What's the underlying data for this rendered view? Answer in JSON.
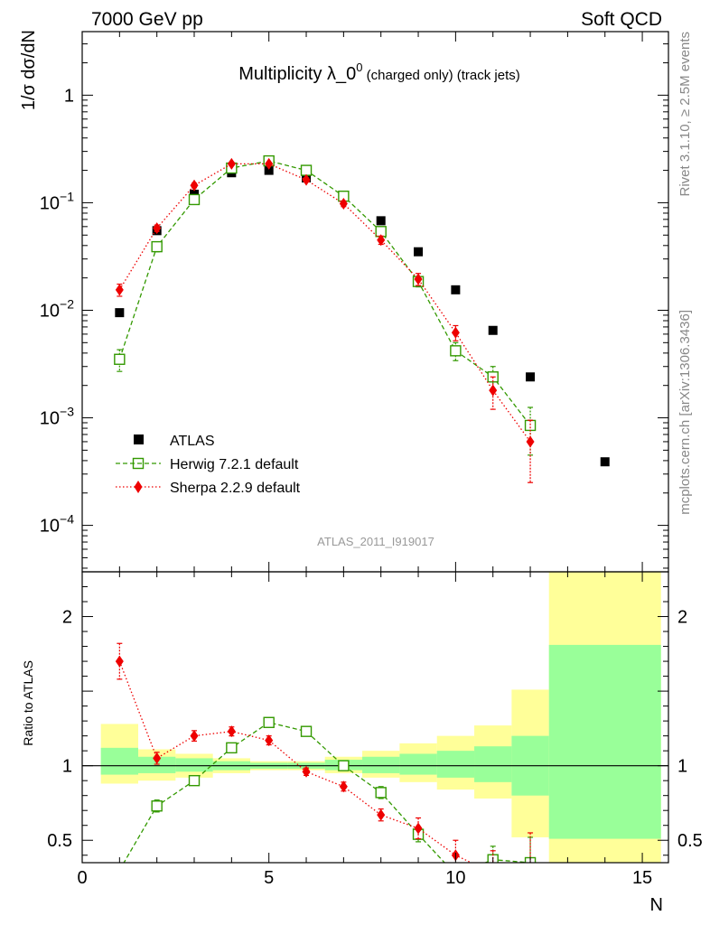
{
  "header": {
    "left": "7000 GeV pp",
    "right": "Soft QCD"
  },
  "side": {
    "rivet": "Rivet 3.1.10, ≥ 2.5M events",
    "site": "mcplots.cern.ch [arXiv:1306.3436]"
  },
  "chart_data": {
    "type": "scatter",
    "title_main": "Multiplicity λ_0",
    "title_sup": "0",
    "title_tail": " (charged only) (track jets)",
    "watermark": "ATLAS_2011_I919017",
    "xlabel": "N",
    "ylabel_top": "1/σ dσ/dN",
    "ylabel_bottom": "Ratio to ATLAS",
    "xlim": [
      0,
      15.7
    ],
    "ylim_top": [
      3.7e-05,
      3.9
    ],
    "ylim_bottom": [
      0.35,
      2.3
    ],
    "yscale_top": "log",
    "xticks": [
      0,
      5,
      10,
      15
    ],
    "yticks_top": [
      {
        "value": 1,
        "base": "1",
        "exp": ""
      },
      {
        "value": 0.1,
        "base": "10",
        "exp": "−1"
      },
      {
        "value": 0.01,
        "base": "10",
        "exp": "−2"
      },
      {
        "value": 0.001,
        "base": "10",
        "exp": "−3"
      },
      {
        "value": 0.0001,
        "base": "10",
        "exp": "−4"
      }
    ],
    "yticks_bottom": [
      {
        "value": 2,
        "label": "2"
      },
      {
        "value": 1,
        "label": "1"
      },
      {
        "value": 0.5,
        "label": "0.5"
      }
    ],
    "legend_position": "bottom-left",
    "data": {
      "name": "ATLAS",
      "color": "#000000",
      "x": [
        1,
        2,
        3,
        4,
        5,
        6,
        7,
        8,
        9,
        10,
        11,
        12,
        14
      ],
      "y": [
        0.0095,
        0.055,
        0.12,
        0.19,
        0.2,
        0.17,
        0.115,
        0.068,
        0.035,
        0.0155,
        0.0065,
        0.0024,
        0.00039
      ],
      "bin_edges": [
        0.5,
        1.5,
        2.5,
        3.5,
        4.5,
        5.5,
        6.5,
        7.5,
        8.5,
        9.5,
        10.5,
        11.5,
        12.5,
        15.5
      ],
      "band_inner": [
        [
          0.94,
          1.12
        ],
        [
          0.95,
          1.06
        ],
        [
          0.96,
          1.05
        ],
        [
          0.97,
          1.03
        ],
        [
          0.98,
          1.02
        ],
        [
          0.98,
          1.02
        ],
        [
          0.97,
          1.04
        ],
        [
          0.95,
          1.06
        ],
        [
          0.94,
          1.08
        ],
        [
          0.92,
          1.1
        ],
        [
          0.89,
          1.13
        ],
        [
          0.8,
          1.2
        ],
        [
          0.51,
          1.81
        ]
      ],
      "band_outer": [
        [
          0.88,
          1.28
        ],
        [
          0.9,
          1.11
        ],
        [
          0.92,
          1.08
        ],
        [
          0.95,
          1.05
        ],
        [
          0.97,
          1.03
        ],
        [
          0.97,
          1.03
        ],
        [
          0.95,
          1.06
        ],
        [
          0.92,
          1.1
        ],
        [
          0.89,
          1.15
        ],
        [
          0.84,
          1.2
        ],
        [
          0.78,
          1.27
        ],
        [
          0.52,
          1.51
        ],
        [
          0.35,
          2.3
        ]
      ]
    },
    "series": [
      {
        "name": "Herwig 7.2.1 default",
        "color": "#339900",
        "marker": "open-square",
        "line": "dashed",
        "x": [
          1,
          2,
          3,
          4,
          5,
          6,
          7,
          8,
          9,
          10,
          11,
          12
        ],
        "y": [
          0.0035,
          0.039,
          0.107,
          0.21,
          0.245,
          0.2,
          0.115,
          0.054,
          0.0185,
          0.0042,
          0.0024,
          0.00085
        ],
        "yerr": [
          0.0008,
          0.004,
          0.006,
          0.008,
          0.008,
          0.008,
          0.006,
          0.004,
          0.002,
          0.0008,
          0.0006,
          0.0004
        ],
        "ratio": [
          0.3,
          0.73,
          0.9,
          1.12,
          1.29,
          1.23,
          1.0,
          0.82,
          0.54,
          0.27,
          0.37,
          0.35
        ],
        "ratio_err": [
          0.0,
          0.04,
          0.03,
          0.025,
          0.02,
          0.02,
          0.025,
          0.04,
          0.05,
          0.06,
          0.09,
          0.17
        ]
      },
      {
        "name": "Sherpa 2.2.9 default",
        "color": "#ee0000",
        "marker": "diamond",
        "line": "dotted",
        "x": [
          1,
          2,
          3,
          4,
          5,
          6,
          7,
          8,
          9,
          10,
          11,
          12
        ],
        "y": [
          0.0155,
          0.058,
          0.145,
          0.23,
          0.23,
          0.163,
          0.098,
          0.045,
          0.0195,
          0.0062,
          0.0018,
          0.0006
        ],
        "yerr": [
          0.002,
          0.004,
          0.007,
          0.008,
          0.008,
          0.007,
          0.006,
          0.004,
          0.0025,
          0.001,
          0.0006,
          0.00035
        ],
        "ratio": [
          1.7,
          1.05,
          1.2,
          1.23,
          1.17,
          0.96,
          0.86,
          0.67,
          0.58,
          0.4,
          0.28,
          0.25
        ],
        "ratio_err": [
          0.12,
          0.04,
          0.035,
          0.03,
          0.03,
          0.025,
          0.03,
          0.04,
          0.07,
          0.1,
          0.15,
          0.3
        ]
      }
    ]
  }
}
